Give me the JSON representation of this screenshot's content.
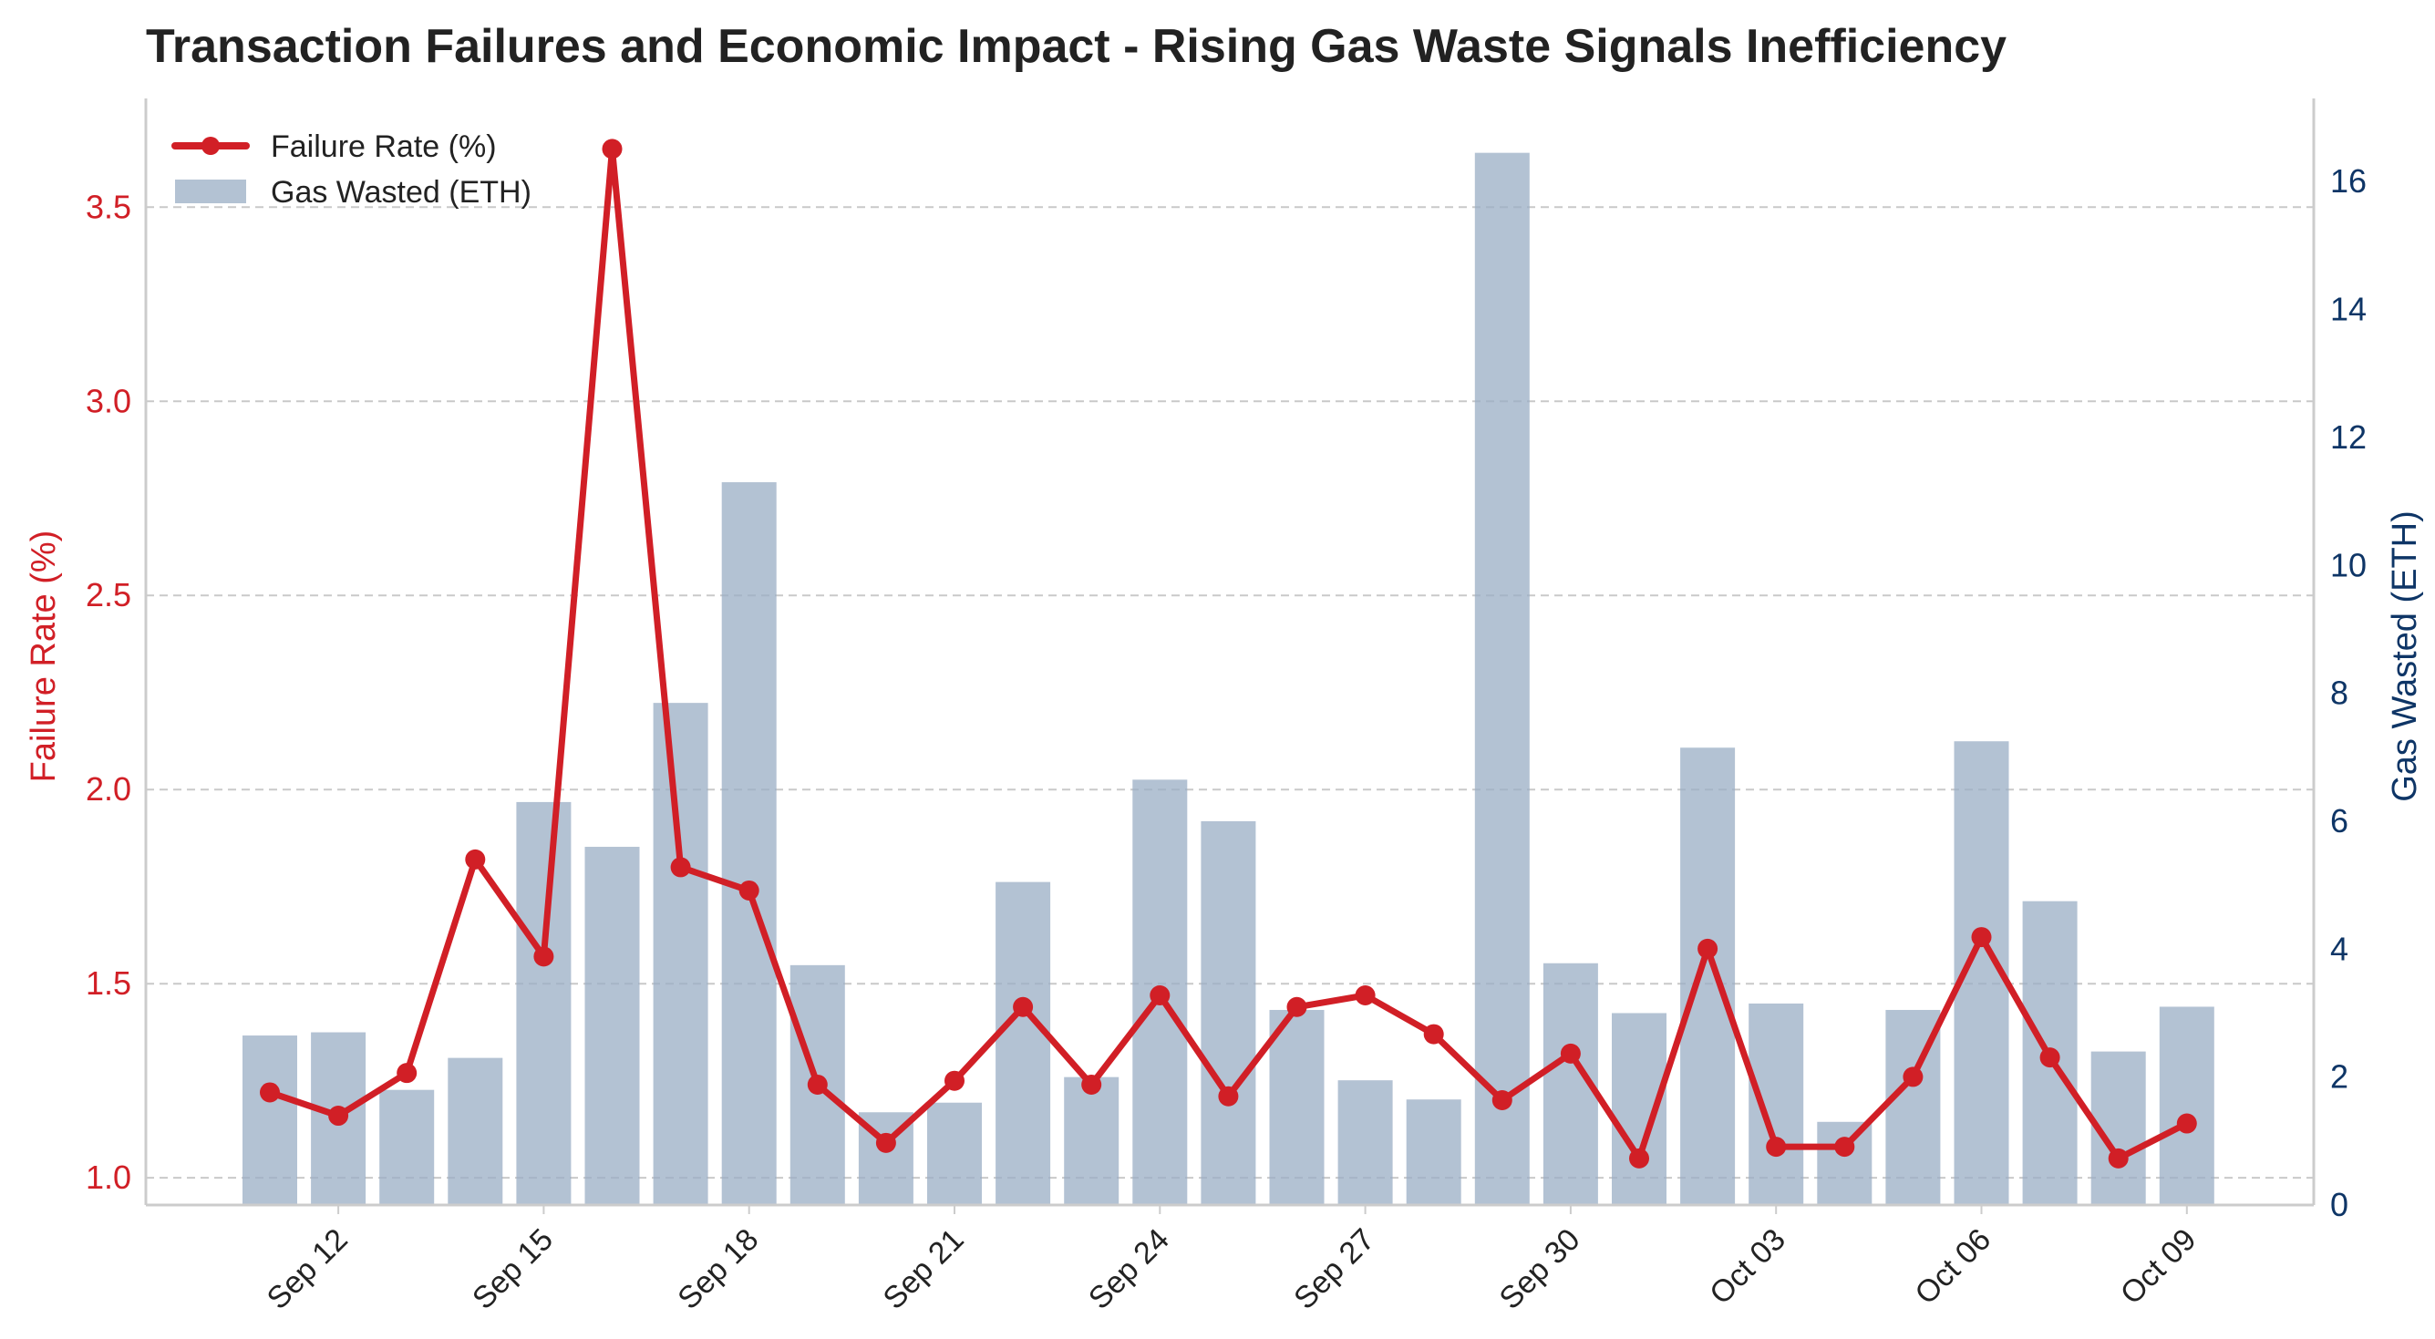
{
  "chart_data": {
    "type": "bar+line",
    "title": "Transaction Failures and Economic Impact - Rising Gas Waste Signals Inefficiency",
    "ylabel_left": "Failure Rate (%)",
    "ylabel_right": "Gas Wasted (ETH)",
    "x": [
      "2023-09-11",
      "2023-09-12",
      "2023-09-13",
      "2023-09-14",
      "2023-09-15",
      "2023-09-16",
      "2023-09-17",
      "2023-09-18",
      "2023-09-19",
      "2023-09-20",
      "2023-09-21",
      "2023-09-22",
      "2023-09-23",
      "2023-09-24",
      "2023-09-25",
      "2023-09-26",
      "2023-09-27",
      "2023-09-28",
      "2023-09-29",
      "2023-09-30",
      "2023-10-01",
      "2023-10-02",
      "2023-10-03",
      "2023-10-04",
      "2023-10-05",
      "2023-10-06",
      "2023-10-07",
      "2023-10-08",
      "2023-10-09"
    ],
    "xtick_labels": [
      "Sep 12",
      "Sep 15",
      "Sep 18",
      "Sep 21",
      "Sep 24",
      "Sep 27",
      "Sep 30",
      "Oct 03",
      "Oct 06",
      "Oct 09"
    ],
    "xtick_dates": [
      "2023-09-12",
      "2023-09-15",
      "2023-09-18",
      "2023-09-21",
      "2023-09-24",
      "2023-09-27",
      "2023-09-30",
      "2023-10-03",
      "2023-10-06",
      "2023-10-09"
    ],
    "series": [
      {
        "name": "Failure Rate (%)",
        "type": "line",
        "axis": "left",
        "color": "#d11f26",
        "values": [
          1.22,
          1.16,
          1.27,
          1.82,
          1.57,
          3.65,
          1.8,
          1.74,
          1.24,
          1.09,
          1.25,
          1.44,
          1.24,
          1.47,
          1.21,
          1.44,
          1.47,
          1.37,
          1.2,
          1.32,
          1.05,
          1.59,
          1.08,
          1.08,
          1.26,
          1.62,
          1.31,
          1.05,
          1.14
        ]
      },
      {
        "name": "Gas Wasted (ETH)",
        "type": "bar",
        "axis": "right",
        "color": "#9aaec4",
        "values": [
          2.65,
          2.7,
          1.8,
          2.3,
          6.3,
          5.6,
          7.85,
          11.3,
          3.75,
          1.45,
          1.6,
          5.05,
          2.0,
          6.65,
          6.0,
          3.05,
          1.95,
          1.65,
          16.45,
          3.78,
          3.0,
          7.15,
          3.15,
          1.3,
          3.05,
          7.25,
          4.75,
          2.4,
          3.1
        ]
      }
    ],
    "ylim_left": [
      0.93,
      3.78
    ],
    "ylim_right": [
      0,
      17.3
    ],
    "yticks_left": [
      1.0,
      1.5,
      2.0,
      2.5,
      3.0,
      3.5
    ],
    "yticks_right": [
      0,
      2,
      4,
      6,
      8,
      10,
      12,
      14,
      16
    ],
    "grid": "horizontal dashed",
    "legend": "top-left"
  }
}
